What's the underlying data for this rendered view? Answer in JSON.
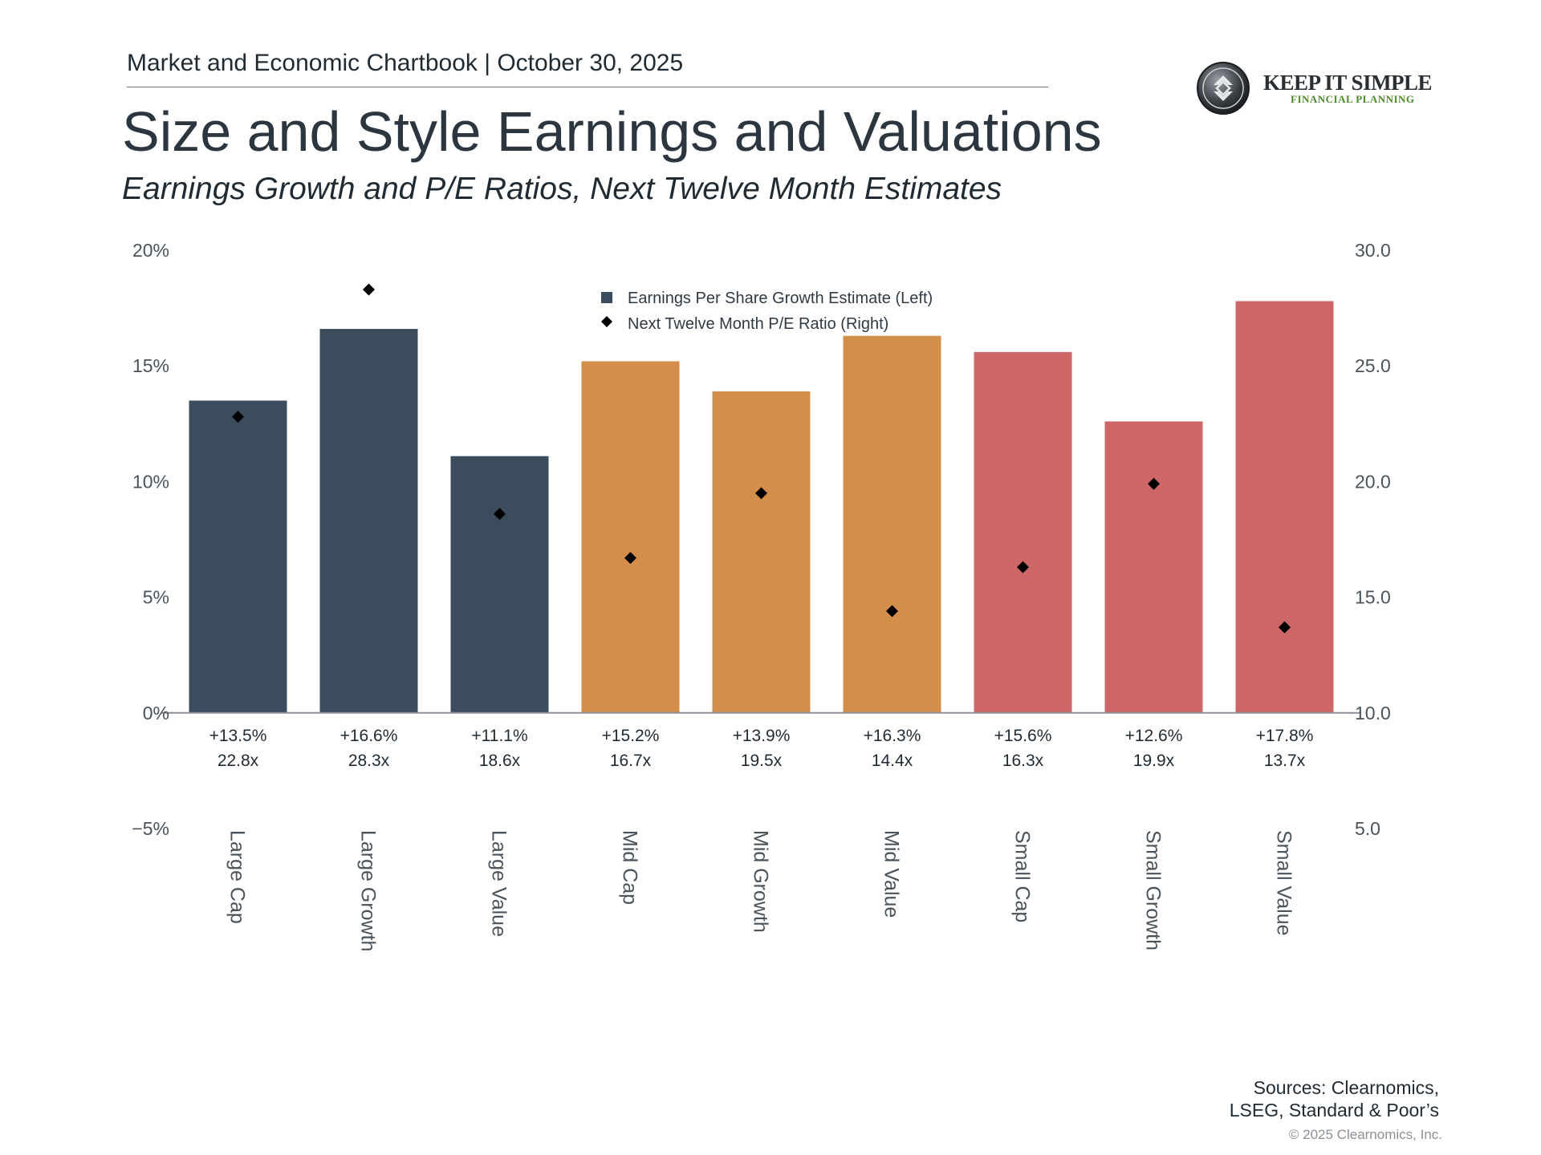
{
  "header": {
    "chartbook": "Market and Economic Chartbook | October 30, 2025",
    "title": "Size and Style Earnings and Valuations",
    "subtitle": "Earnings Growth and P/E Ratios, Next Twelve Month Estimates"
  },
  "logo": {
    "line1": "KEEP IT SIMPLE",
    "line2": "FINANCIAL PLANNING"
  },
  "footer": {
    "sources_line1": "Sources: Clearnomics,",
    "sources_line2": "LSEG, Standard & Poor’s",
    "copyright": "© 2025 Clearnomics, Inc."
  },
  "chart_data": {
    "type": "bar",
    "title": "Earnings Growth and P/E Ratios, Next Twelve Month Estimates",
    "categories": [
      "Large Cap",
      "Large Growth",
      "Large Value",
      "Mid Cap",
      "Mid Growth",
      "Mid Value",
      "Small Cap",
      "Small Growth",
      "Small Value"
    ],
    "series": [
      {
        "name": "Earnings Per Share Growth Estimate (Left)",
        "kind": "bar",
        "axis": "left",
        "values": [
          13.5,
          16.6,
          11.1,
          15.2,
          13.9,
          16.3,
          15.6,
          12.6,
          17.8
        ],
        "labels": [
          "+13.5%",
          "+16.6%",
          "+11.1%",
          "+15.2%",
          "+13.9%",
          "+16.3%",
          "+15.6%",
          "+12.6%",
          "+17.8%"
        ]
      },
      {
        "name": "Next Twelve Month P/E Ratio (Right)",
        "kind": "scatter",
        "marker": "diamond",
        "axis": "right",
        "values": [
          22.8,
          28.3,
          18.6,
          16.7,
          19.5,
          14.4,
          16.3,
          19.9,
          13.7
        ],
        "labels": [
          "22.8x",
          "28.3x",
          "18.6x",
          "16.7x",
          "19.5x",
          "14.4x",
          "16.3x",
          "19.9x",
          "13.7x"
        ]
      }
    ],
    "bar_colors": [
      "#3b4d5c",
      "#3b4d5c",
      "#3b4d5c",
      "#d38e4c",
      "#d38e4c",
      "#d38e4c",
      "#cd6666",
      "#cd6666",
      "#cd6666"
    ],
    "marker_color": "#000000",
    "legend_swatch_color": "#3b4d5c",
    "y_left": {
      "min": -5,
      "max": 20,
      "ticks": [
        20,
        15,
        10,
        5,
        0,
        -5
      ],
      "tick_labels": [
        "20%",
        "15%",
        "10%",
        "5%",
        "0%",
        "−5%"
      ]
    },
    "y_right": {
      "min": 5,
      "max": 30,
      "ticks": [
        30,
        25,
        20,
        15,
        10,
        5
      ],
      "tick_labels": [
        "30.0",
        "25.0",
        "20.0",
        "15.0",
        "10.0",
        "5.0"
      ]
    },
    "grid": false,
    "legend_position": "top-center"
  }
}
